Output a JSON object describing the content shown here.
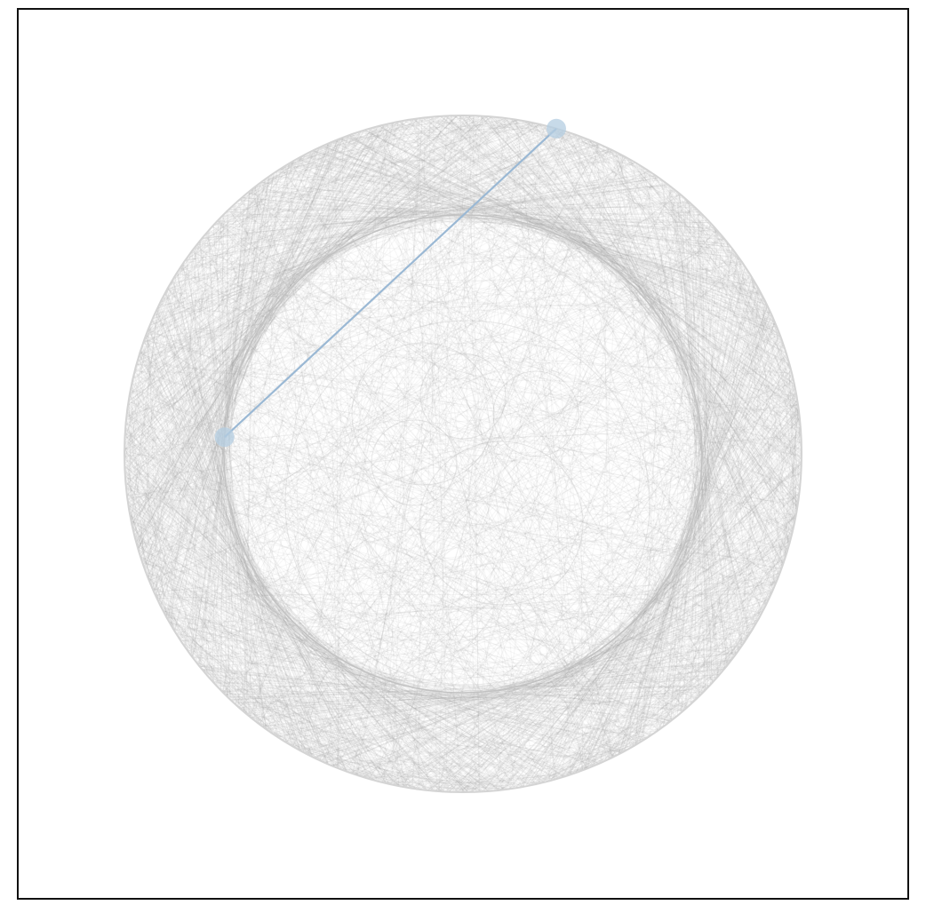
{
  "diagram": {
    "type": "chord-sampling-visualization",
    "outer_circle": true,
    "inner_circle": true,
    "background_chord_count": 2200,
    "highlighted_chord": {
      "endpoint_a_angle_deg": -74,
      "endpoint_b_angle_deg": 184
    },
    "colors": {
      "background": "#ffffff",
      "frame": "#111111",
      "circle_stroke": "#d4d4d4",
      "inner_circle_stroke": "#c2c2c2",
      "chord_stroke": "#9a9a9a",
      "highlight_line": "#9ab8d4",
      "highlight_point": "#b4cde2"
    }
  }
}
